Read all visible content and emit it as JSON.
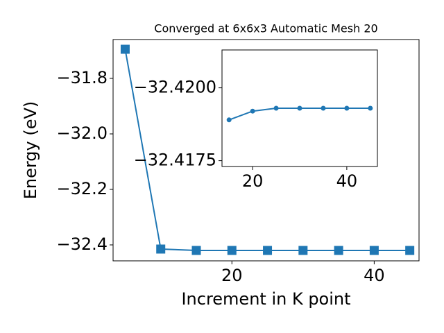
{
  "chart_data": [
    {
      "type": "line",
      "title": "Converged at 6x6x3 Automatic Mesh 20",
      "x_label": "Increment in K point",
      "y_label": "Energy (eV)",
      "x": [
        5,
        10,
        15,
        20,
        25,
        30,
        35,
        40,
        45
      ],
      "series": [
        {
          "color": "#1f77b4",
          "marker": "square",
          "values": [
            -31.695,
            -32.415,
            -32.42,
            -32.42,
            -32.42,
            -32.42,
            -32.42,
            -32.42,
            -32.42
          ]
        }
      ],
      "xlim": [
        3.3,
        46.3
      ],
      "ylim": [
        -32.4575,
        -31.66
      ],
      "xticks": [
        20,
        40
      ],
      "yticks": [
        {
          "value": -31.8,
          "label": "−31.8"
        },
        {
          "value": -32.0,
          "label": "−32.0"
        },
        {
          "value": -32.2,
          "label": "−32.2"
        },
        {
          "value": -32.4,
          "label": "−32.4"
        }
      ]
    },
    {
      "type": "line",
      "x": [
        15,
        20,
        25,
        30,
        35,
        40,
        45
      ],
      "series": [
        {
          "color": "#1f77b4",
          "marker": "circle",
          "values": [
            -32.4189,
            -32.4192,
            -32.4193,
            -32.4193,
            -32.4193,
            -32.4193,
            -32.4193
          ]
        }
      ],
      "xlim": [
        13.5,
        46.5
      ],
      "ylim": [
        -32.4173,
        -32.4213
      ],
      "xticks": [
        20,
        40
      ],
      "yticks": [
        {
          "value": -32.42,
          "label": "−32.4200"
        },
        {
          "value": -32.4175,
          "label": "−32.4175"
        }
      ]
    }
  ]
}
